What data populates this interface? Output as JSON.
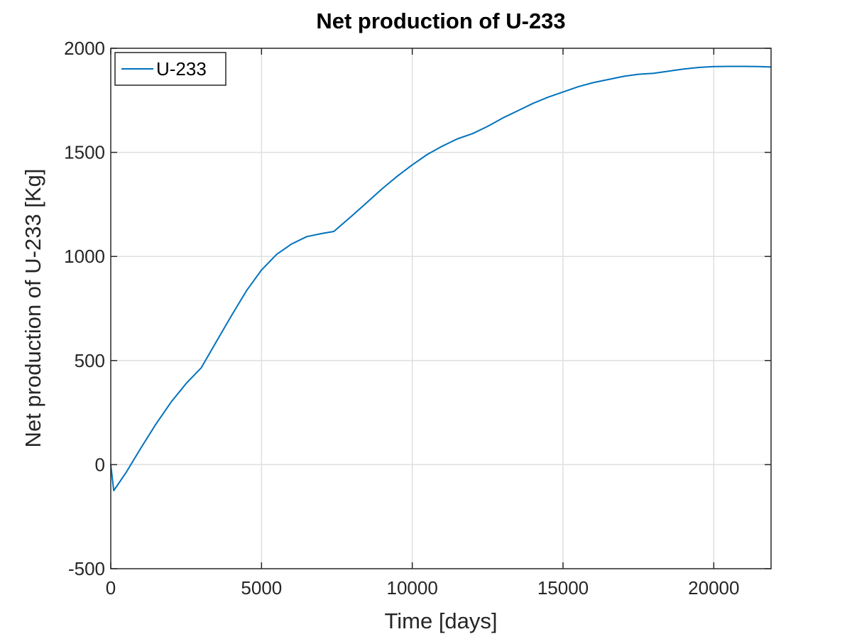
{
  "chart_data": {
    "type": "line",
    "title": "Net production of U-233",
    "xlabel": "Time [days]",
    "ylabel": "Net production of U-233 [Kg]",
    "xlim": [
      0,
      21900
    ],
    "ylim": [
      -500,
      2000
    ],
    "xticks": [
      0,
      5000,
      10000,
      15000,
      20000
    ],
    "xtick_labels": [
      "0",
      "5000",
      "10000",
      "15000",
      "20000"
    ],
    "yticks": [
      -500,
      0,
      500,
      1000,
      1500,
      2000
    ],
    "ytick_labels": [
      "-500",
      "0",
      "500",
      "1000",
      "1500",
      "2000"
    ],
    "grid": true,
    "legend_position": "top-left",
    "series": [
      {
        "name": "U-233",
        "color": "#0072BD",
        "x": [
          0,
          100,
          500,
          1000,
          1500,
          2000,
          2500,
          3000,
          3500,
          4000,
          4500,
          5000,
          5500,
          6000,
          6500,
          7000,
          7400,
          8000,
          8500,
          9000,
          9500,
          10000,
          10500,
          11000,
          11500,
          12000,
          12500,
          13000,
          13500,
          14000,
          14500,
          15000,
          15500,
          16000,
          16500,
          17000,
          17500,
          18000,
          18500,
          19000,
          19500,
          20000,
          20500,
          21000,
          21500,
          21900
        ],
        "y": [
          0,
          -125,
          -40,
          80,
          195,
          300,
          390,
          465,
          590,
          715,
          835,
          935,
          1010,
          1060,
          1095,
          1110,
          1120,
          1195,
          1260,
          1325,
          1385,
          1440,
          1490,
          1530,
          1565,
          1590,
          1625,
          1665,
          1700,
          1735,
          1765,
          1790,
          1815,
          1835,
          1850,
          1865,
          1875,
          1880,
          1890,
          1900,
          1908,
          1912,
          1913,
          1913,
          1912,
          1910
        ]
      }
    ]
  }
}
